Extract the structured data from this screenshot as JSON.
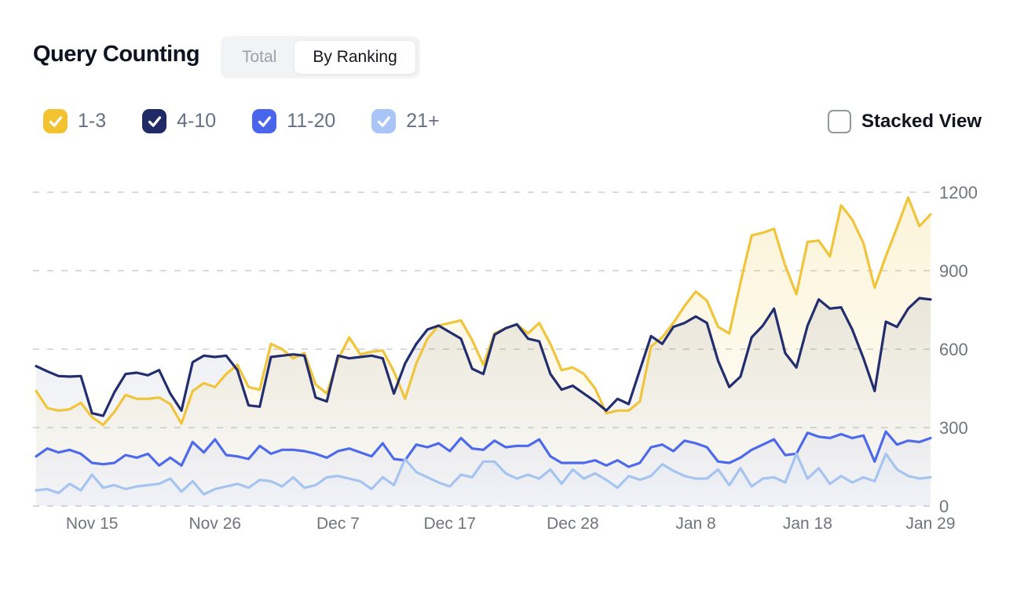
{
  "header": {
    "title": "Query Counting"
  },
  "toggle": {
    "options": [
      "Total",
      "By Ranking"
    ],
    "active": "By Ranking"
  },
  "legend": {
    "items": [
      {
        "label": "1-3",
        "color": "#f2c230",
        "checked": true
      },
      {
        "label": "4-10",
        "color": "#202b66",
        "checked": true
      },
      {
        "label": "11-20",
        "color": "#4966eb",
        "checked": true
      },
      {
        "label": "21+",
        "color": "#a9c4f7",
        "checked": true
      }
    ]
  },
  "stacked_view": {
    "label": "Stacked View",
    "checked": false
  },
  "chart_data": {
    "type": "line",
    "x_unit": "day",
    "n_points": 81,
    "x_range_dates": [
      "Nov 10",
      "Jan 29"
    ],
    "x_ticks": [
      {
        "label": "Nov 15",
        "index": 5
      },
      {
        "label": "Nov 26",
        "index": 16
      },
      {
        "label": "Dec 7",
        "index": 27
      },
      {
        "label": "Dec 17",
        "index": 37
      },
      {
        "label": "Dec 28",
        "index": 48
      },
      {
        "label": "Jan 8",
        "index": 59
      },
      {
        "label": "Jan 18",
        "index": 69
      },
      {
        "label": "Jan 29",
        "index": 80
      }
    ],
    "y_ticks": [
      0,
      300,
      600,
      900,
      1200
    ],
    "ylim": [
      0,
      1290
    ],
    "y_axis_position": "right",
    "grid": "horizontal-dashed",
    "grid_color": "#d8dadd",
    "series": [
      {
        "name": "1-3",
        "color": "#f0c53b",
        "area_top": "rgba(240,197,59,0.20)",
        "area_bottom": "rgba(240,197,59,0.02)",
        "values": [
          440,
          375,
          365,
          370,
          395,
          340,
          310,
          360,
          425,
          410,
          410,
          415,
          390,
          315,
          440,
          470,
          455,
          505,
          540,
          455,
          445,
          620,
          600,
          565,
          585,
          465,
          430,
          560,
          645,
          580,
          590,
          595,
          515,
          410,
          545,
          640,
          690,
          700,
          710,
          635,
          540,
          660,
          680,
          695,
          660,
          700,
          620,
          520,
          530,
          505,
          450,
          355,
          365,
          365,
          400,
          610,
          645,
          700,
          765,
          820,
          785,
          685,
          660,
          855,
          1035,
          1045,
          1060,
          920,
          810,
          1010,
          1015,
          955,
          1150,
          1095,
          1005,
          835,
          955,
          1065,
          1180,
          1070,
          1115
        ]
      },
      {
        "name": "4-10",
        "color": "#232e6f",
        "area_top": "rgba(62,72,118,0.14)",
        "area_bottom": "rgba(62,72,118,0.02)",
        "values": [
          535,
          515,
          497,
          495,
          497,
          355,
          345,
          435,
          505,
          510,
          500,
          520,
          430,
          365,
          550,
          575,
          570,
          575,
          520,
          385,
          380,
          570,
          575,
          580,
          575,
          415,
          400,
          575,
          565,
          570,
          575,
          565,
          430,
          545,
          620,
          675,
          690,
          665,
          640,
          525,
          505,
          655,
          680,
          695,
          640,
          630,
          505,
          445,
          460,
          430,
          400,
          365,
          410,
          390,
          520,
          650,
          620,
          685,
          700,
          725,
          700,
          555,
          455,
          495,
          645,
          690,
          755,
          585,
          530,
          690,
          790,
          755,
          760,
          675,
          565,
          440,
          705,
          685,
          755,
          795,
          790
        ]
      },
      {
        "name": "11-20",
        "color": "#4e6aea",
        "area_top": "rgba(78,106,234,0.16)",
        "area_bottom": "rgba(78,106,234,0.03)",
        "values": [
          190,
          220,
          205,
          215,
          200,
          165,
          160,
          165,
          195,
          185,
          200,
          155,
          185,
          155,
          245,
          205,
          255,
          195,
          190,
          180,
          230,
          200,
          215,
          215,
          210,
          200,
          185,
          210,
          220,
          205,
          190,
          240,
          180,
          175,
          235,
          225,
          240,
          210,
          260,
          220,
          215,
          250,
          225,
          230,
          230,
          255,
          190,
          165,
          165,
          165,
          175,
          155,
          175,
          150,
          165,
          225,
          235,
          210,
          250,
          240,
          225,
          170,
          165,
          185,
          215,
          235,
          255,
          195,
          200,
          280,
          265,
          260,
          275,
          260,
          270,
          170,
          285,
          235,
          250,
          245,
          260
        ]
      },
      {
        "name": "21+",
        "color": "#a5c4f0",
        "area_top": "rgba(165,196,240,0.30)",
        "area_bottom": "rgba(165,196,240,0.06)",
        "values": [
          60,
          65,
          50,
          85,
          60,
          120,
          70,
          80,
          65,
          75,
          80,
          85,
          105,
          55,
          95,
          45,
          65,
          75,
          85,
          70,
          100,
          95,
          75,
          110,
          70,
          80,
          110,
          115,
          105,
          95,
          65,
          110,
          80,
          180,
          130,
          110,
          90,
          75,
          120,
          110,
          170,
          170,
          125,
          105,
          120,
          105,
          140,
          85,
          140,
          105,
          125,
          100,
          70,
          115,
          100,
          115,
          160,
          135,
          115,
          105,
          105,
          140,
          80,
          145,
          75,
          105,
          110,
          90,
          200,
          105,
          145,
          85,
          115,
          90,
          110,
          95,
          200,
          140,
          115,
          105,
          110
        ]
      }
    ]
  }
}
